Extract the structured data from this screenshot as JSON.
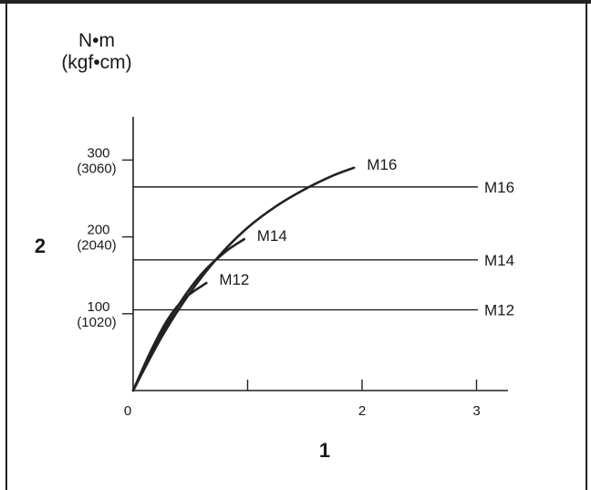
{
  "chart_data": {
    "type": "line",
    "title": "",
    "ylabel_unit_line1": "N•m",
    "ylabel_unit_line2": "(kgf•cm)",
    "y_axis_marker": "2",
    "x_axis_marker": "1",
    "xlim": [
      0,
      3.15
    ],
    "ylim": [
      0,
      350
    ],
    "x_ticks": [
      {
        "value": 0,
        "label": "0"
      },
      {
        "value": 1,
        "label": ""
      },
      {
        "value": 2,
        "label": "2"
      },
      {
        "value": 3,
        "label": "3"
      }
    ],
    "y_ticks": [
      {
        "value": 100,
        "label": "100",
        "sublabel": "(1020)"
      },
      {
        "value": 200,
        "label": "200",
        "sublabel": "(2040)"
      },
      {
        "value": 300,
        "label": "300",
        "sublabel": "(3060)"
      }
    ],
    "series": [
      {
        "name": "M16",
        "points": [
          [
            0,
            0
          ],
          [
            0.25,
            70
          ],
          [
            0.5,
            128
          ],
          [
            0.75,
            175
          ],
          [
            1.0,
            212
          ],
          [
            1.25,
            240
          ],
          [
            1.5,
            262
          ],
          [
            1.75,
            280
          ],
          [
            1.93,
            290
          ]
        ]
      },
      {
        "name": "M14",
        "points": [
          [
            0,
            0
          ],
          [
            0.2,
            60
          ],
          [
            0.4,
            112
          ],
          [
            0.6,
            152
          ],
          [
            0.8,
            180
          ],
          [
            0.97,
            197
          ]
        ]
      },
      {
        "name": "M12",
        "points": [
          [
            0,
            0
          ],
          [
            0.15,
            50
          ],
          [
            0.3,
            92
          ],
          [
            0.45,
            120
          ],
          [
            0.64,
            140
          ]
        ]
      }
    ],
    "reference_lines": [
      {
        "name": "M16",
        "value": 265
      },
      {
        "name": "M14",
        "value": 170
      },
      {
        "name": "M12",
        "value": 105
      }
    ]
  }
}
